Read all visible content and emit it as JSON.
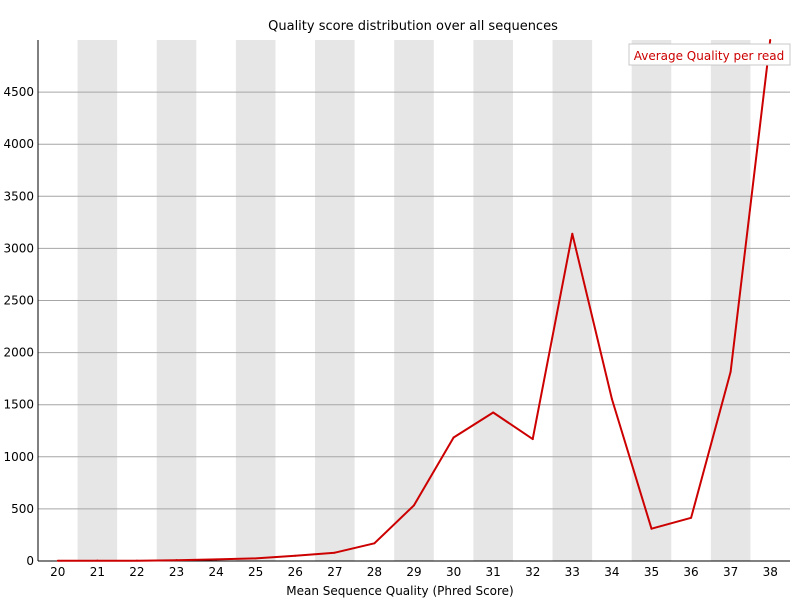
{
  "chart_data": {
    "type": "line",
    "title": "Quality score distribution over all sequences",
    "xlabel": "Mean Sequence Quality (Phred Score)",
    "ylabel": "",
    "x": [
      20,
      21,
      22,
      23,
      24,
      25,
      26,
      27,
      28,
      29,
      30,
      31,
      32,
      33,
      34,
      35,
      36,
      37,
      38
    ],
    "x_tick_labels": [
      "20",
      "21",
      "22",
      "23",
      "24",
      "25",
      "26",
      "27",
      "28",
      "29",
      "30",
      "31",
      "32",
      "33",
      "34",
      "35",
      "36",
      "37",
      "38"
    ],
    "y_ticks": [
      0,
      500,
      1000,
      1500,
      2000,
      2500,
      3000,
      3500,
      4000,
      4500
    ],
    "y_tick_labels": [
      "0",
      "500",
      "1000",
      "1500",
      "2000",
      "2500",
      "3000",
      "3500",
      "4000",
      "4500"
    ],
    "ylim": [
      0,
      5000
    ],
    "series": [
      {
        "name": "Average Quality per read",
        "color": "#cc0000",
        "values": [
          2,
          3,
          3,
          8,
          15,
          25,
          50,
          80,
          170,
          535,
          1185,
          1425,
          1170,
          3140,
          1555,
          310,
          415,
          1815,
          5000
        ]
      }
    ],
    "legend_position": "top-right",
    "grid": true
  }
}
